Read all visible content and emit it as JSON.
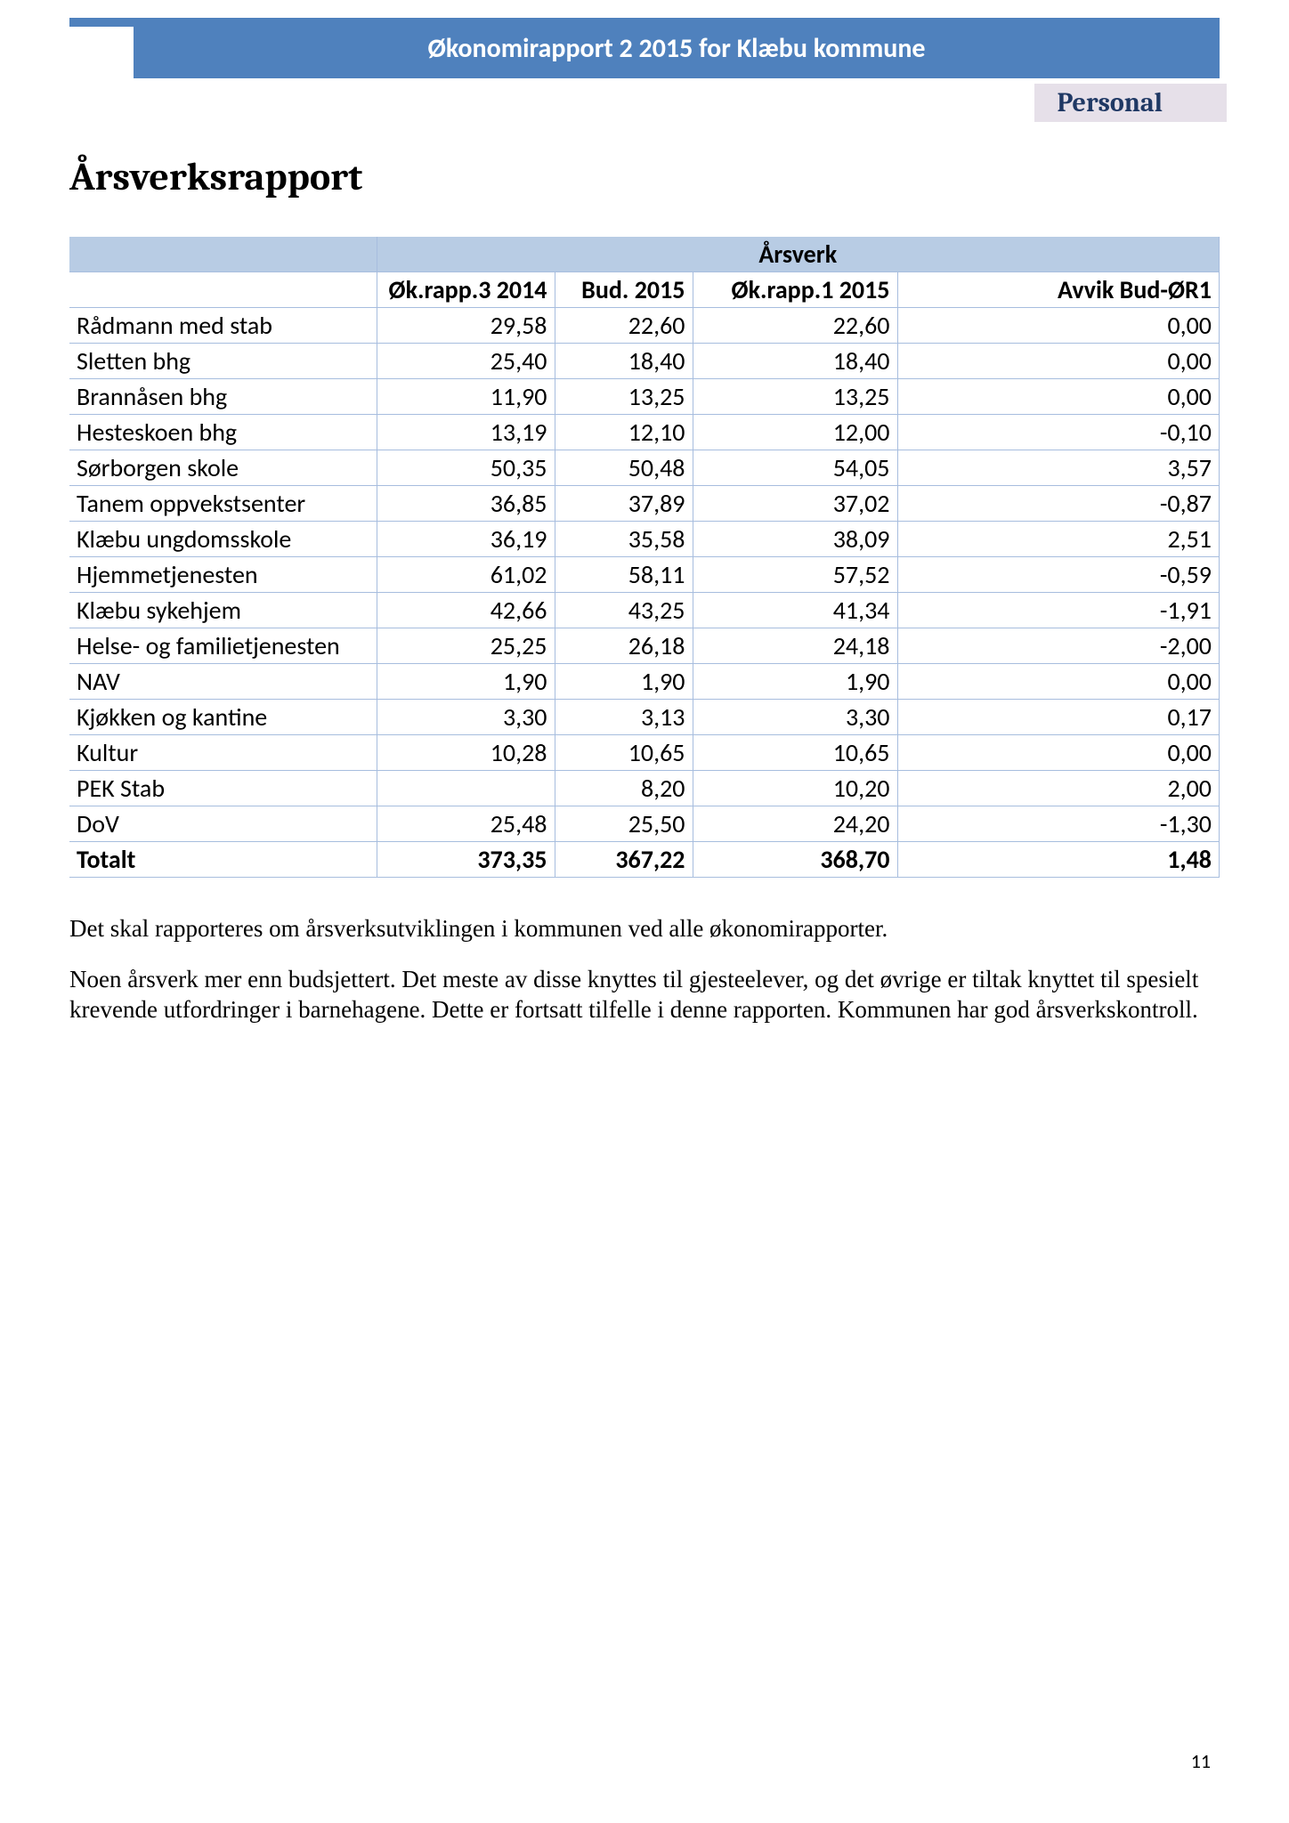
{
  "header": {
    "title": "Økonomirapport 2 2015 for Klæbu kommune",
    "section_badge": "Personal"
  },
  "page_title": "Årsverksrapport",
  "table": {
    "group_header": "Årsverk",
    "columns": [
      "Øk.rapp.3 2014",
      "Bud. 2015",
      "Øk.rapp.1 2015",
      "Avvik Bud-ØR1"
    ],
    "rows": [
      {
        "label": "Rådmann med stab",
        "v": [
          "29,58",
          "22,60",
          "22,60",
          "0,00"
        ]
      },
      {
        "label": "Sletten bhg",
        "v": [
          "25,40",
          "18,40",
          "18,40",
          "0,00"
        ]
      },
      {
        "label": "Brannåsen bhg",
        "v": [
          "11,90",
          "13,25",
          "13,25",
          "0,00"
        ]
      },
      {
        "label": "Hesteskoen bhg",
        "v": [
          "13,19",
          "12,10",
          "12,00",
          "-0,10"
        ]
      },
      {
        "label": "Sørborgen skole",
        "v": [
          "50,35",
          "50,48",
          "54,05",
          "3,57"
        ]
      },
      {
        "label": "Tanem oppvekstsenter",
        "v": [
          "36,85",
          "37,89",
          "37,02",
          "-0,87"
        ]
      },
      {
        "label": "Klæbu ungdomsskole",
        "v": [
          "36,19",
          "35,58",
          "38,09",
          "2,51"
        ]
      },
      {
        "label": "Hjemmetjenesten",
        "v": [
          "61,02",
          "58,11",
          "57,52",
          "-0,59"
        ]
      },
      {
        "label": "Klæbu sykehjem",
        "v": [
          "42,66",
          "43,25",
          "41,34",
          "-1,91"
        ]
      },
      {
        "label": "Helse- og familietjenesten",
        "v": [
          "25,25",
          "26,18",
          "24,18",
          "-2,00"
        ]
      },
      {
        "label": "NAV",
        "v": [
          "1,90",
          "1,90",
          "1,90",
          "0,00"
        ]
      },
      {
        "label": "Kjøkken og kantine",
        "v": [
          "3,30",
          "3,13",
          "3,30",
          "0,17"
        ]
      },
      {
        "label": "Kultur",
        "v": [
          "10,28",
          "10,65",
          "10,65",
          "0,00"
        ]
      },
      {
        "label": "PEK Stab",
        "v": [
          "",
          "8,20",
          "10,20",
          "2,00"
        ]
      },
      {
        "label": "DoV",
        "v": [
          "25,48",
          "25,50",
          "24,20",
          "-1,30"
        ]
      }
    ],
    "total": {
      "label": "Totalt",
      "v": [
        "373,35",
        "367,22",
        "368,70",
        "1,48"
      ]
    }
  },
  "paragraphs": [
    "Det skal rapporteres om årsverksutviklingen i kommunen ved alle økonomirapporter.",
    "Noen årsverk mer enn budsjettert. Det meste av disse knyttes til gjesteelever, og det øvrige er tiltak knyttet til spesielt krevende utfordringer i barnehagene. Dette er fortsatt tilfelle i denne rapporten. Kommunen har god årsverkskontroll."
  ],
  "page_number": "11",
  "colors": {
    "header_bg": "#4f81bd",
    "table_header_bg": "#b8cce4",
    "table_border": "#a7bdde",
    "badge_bg": "#e6e0e9",
    "badge_text": "#1f3864"
  }
}
